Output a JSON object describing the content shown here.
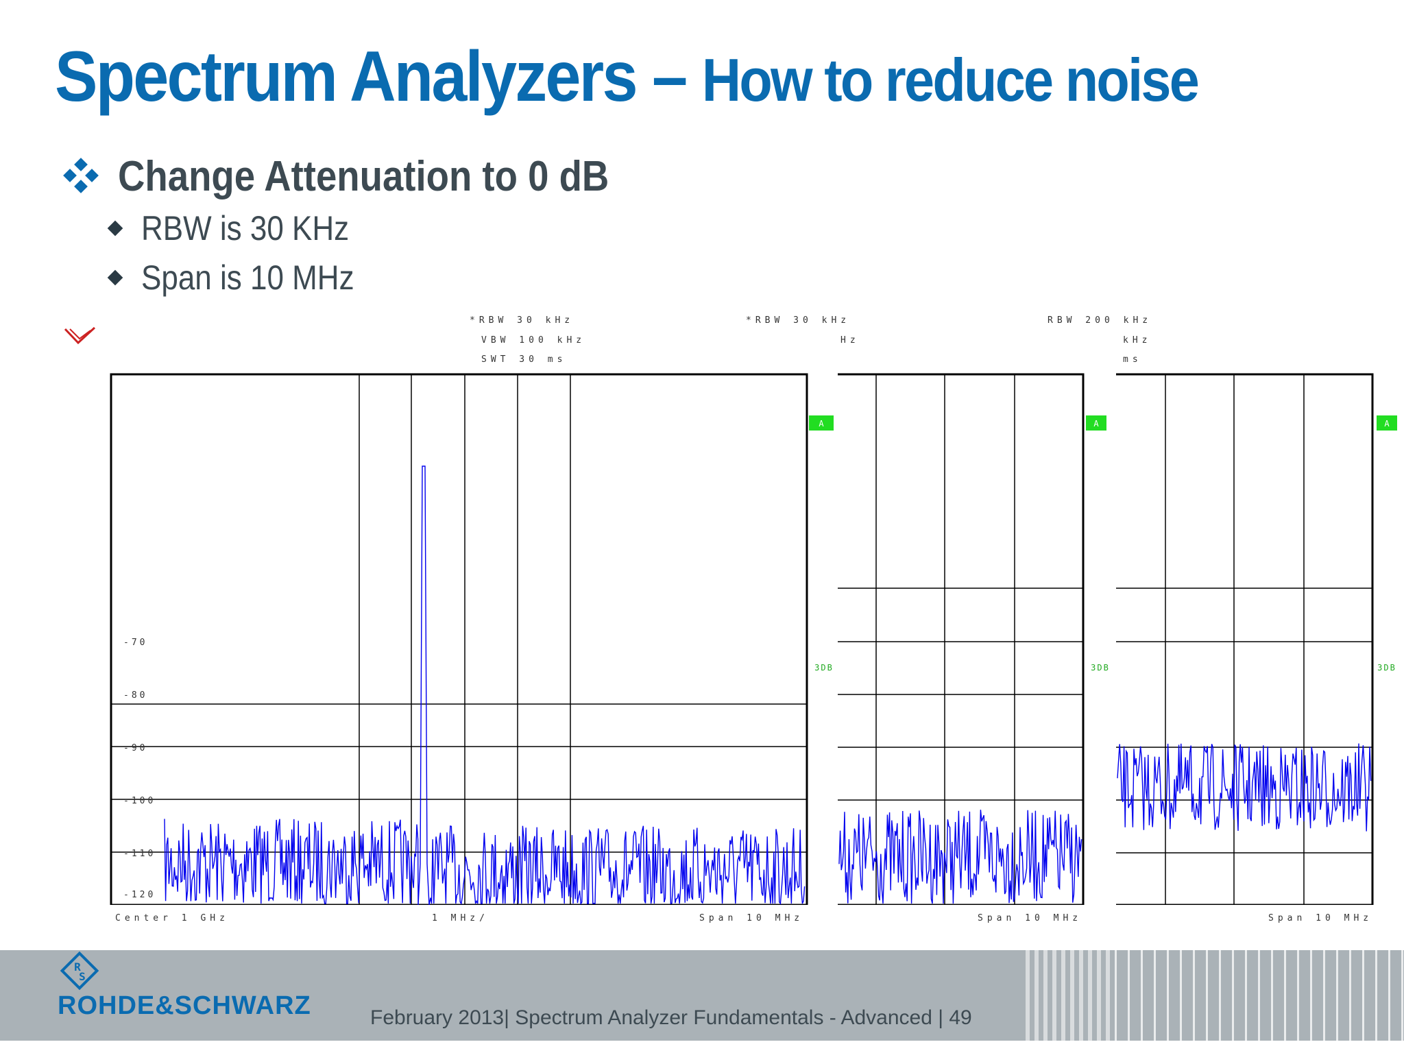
{
  "title": {
    "main": "Spectrum Analyzers –",
    "sub": "How to reduce noise"
  },
  "bullets": {
    "main": "Change Attenuation to 0 dB",
    "sub": [
      "RBW is 30 KHz",
      "Span is 10 MHz"
    ]
  },
  "panels": [
    {
      "header": [
        "*RBW 30 kHz",
        "VBW 100 kHz",
        "SWT 30 ms"
      ],
      "marker": "A",
      "trigger": "3DB",
      "yticks": [
        "-70",
        "-80",
        "-90",
        "-100",
        "-110",
        "-120"
      ],
      "footer_left": "Center 1 GHz",
      "footer_mid": "1 MHz/",
      "footer_right": "Span 10 MHz"
    },
    {
      "header": [
        "*RBW 30 kHz",
        "Hz"
      ],
      "marker": "A",
      "trigger": "3DB",
      "footer_right": "Span 10 MHz"
    },
    {
      "header": [
        "RBW 200 kHz",
        "kHz",
        "ms"
      ],
      "marker": "A",
      "trigger": "3DB",
      "footer_right": "Span 10 MHz"
    }
  ],
  "colors": {
    "accent": "#0a6bb0",
    "trace": "#0000ee",
    "marker": "#22dd22",
    "footer": "#aab2b7",
    "text": "#3d4a52"
  },
  "footer": {
    "brand": "ROHDE&SCHWARZ",
    "text": "February 2013| Spectrum Analyzer Fundamentals - Advanced | 49"
  }
}
